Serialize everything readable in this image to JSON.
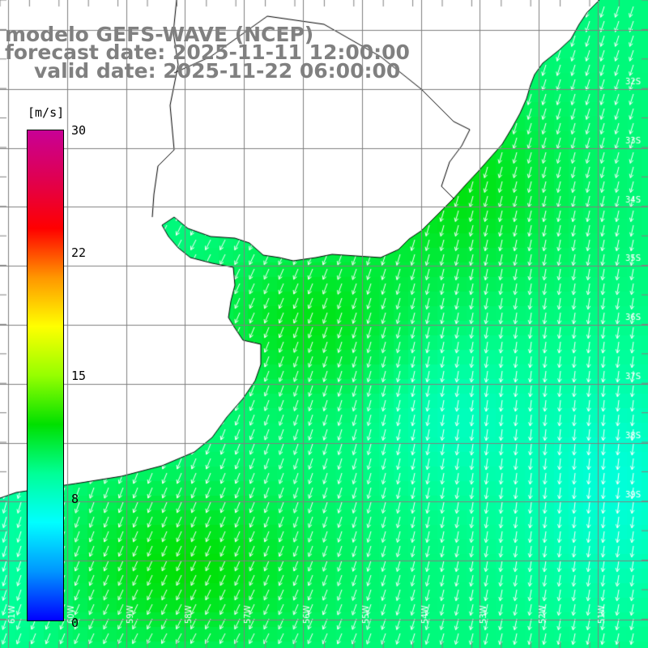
{
  "title": {
    "line1": "modelo GEFS-WAVE (NCEP)",
    "line2": "forecast date: 2025-11-11 12:00:00",
    "line3": "valid date: 2025-11-22 06:00:00"
  },
  "colorbar": {
    "unit": "[m/s]",
    "ticks": [
      "30",
      "22",
      "15",
      "8",
      "0"
    ],
    "tick_values": [
      30,
      22,
      15,
      8,
      0
    ],
    "range": [
      0,
      30
    ],
    "colors": [
      "#0000ff",
      "#0096ff",
      "#00ffff",
      "#00ff96",
      "#00e000",
      "#96ff00",
      "#ffff00",
      "#ff9600",
      "#ff0000",
      "#e00050",
      "#c80096"
    ]
  },
  "map": {
    "lat_labels": [
      "32S",
      "33S",
      "34S",
      "35S",
      "36S",
      "37S",
      "38S",
      "39S"
    ],
    "lon_labels": [
      "61W",
      "60W",
      "59W",
      "58W",
      "57W",
      "56W",
      "55W",
      "54W",
      "53W",
      "52W",
      "51W"
    ],
    "land_color": "#ffffff",
    "grid_color": "#808080",
    "arrow_color": "#ffffff",
    "arrow_direction": "toward south-southwest"
  }
}
